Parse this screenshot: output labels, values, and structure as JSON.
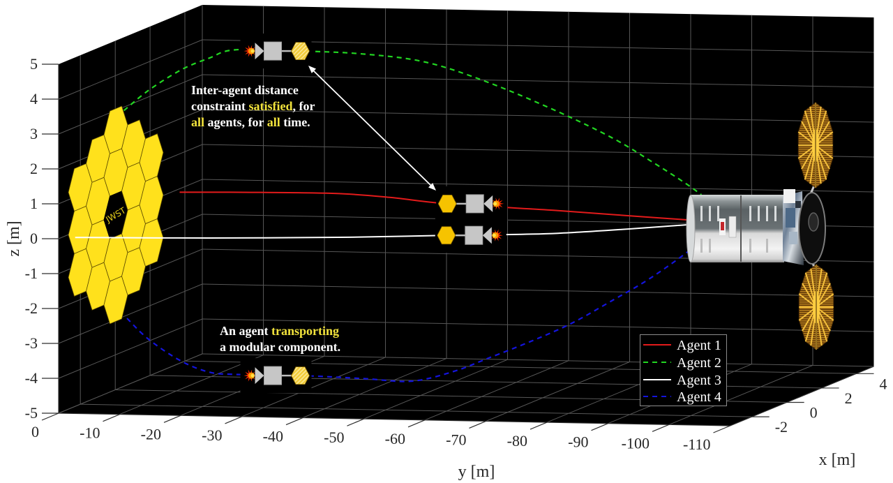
{
  "annotations": {
    "highlight_color": "#f2e33c",
    "distance_constraint": {
      "line1": "Inter-agent distance",
      "line2": {
        "pre": "constraint ",
        "highlight": "satisfied",
        "post": ", for"
      },
      "line3": {
        "highlight_1": "all",
        "mid": " agents, for ",
        "highlight_2": "all",
        "post": " time."
      }
    },
    "transport": {
      "line1": {
        "pre": "An agent ",
        "highlight": "transporting"
      },
      "line2": "a modular component."
    }
  },
  "objects": {
    "jwst_label": "JWST"
  },
  "chart_data": {
    "type": "line",
    "subtype": "3d-trajectories",
    "title": "",
    "xlabel": "x [m]",
    "ylabel": "y [m]",
    "zlabel": "z [m]",
    "xlim": [
      -3.25,
      5
    ],
    "ylim": [
      -110,
      0
    ],
    "zlim": [
      -5,
      5
    ],
    "xticks": [
      -2,
      0,
      2,
      4
    ],
    "yticks": [
      0,
      -10,
      -20,
      -30,
      -40,
      -50,
      -60,
      -70,
      -80,
      -90,
      -100,
      -110
    ],
    "zticks": [
      5,
      4,
      3,
      2,
      1,
      0,
      -1,
      -2,
      -3,
      -4,
      -5
    ],
    "grid": true,
    "background": "#000000",
    "legend": {
      "position": "southeast-inside"
    },
    "series": [
      {
        "name": "Agent 1",
        "color": "#e31b1b",
        "line_style": "solid",
        "points_xyz": [
          [
            3.7,
            0,
            -0.1
          ],
          [
            3.4,
            -12.6,
            0.0
          ],
          [
            3.0,
            -27.4,
            0.1
          ],
          [
            2.6,
            -37.7,
            0.1
          ],
          [
            2.0,
            -48.7,
            0.08
          ],
          [
            1.5,
            -68.3,
            0.05
          ],
          [
            1.0,
            -81.1,
            0.05
          ],
          [
            0.5,
            -92.3,
            0.07
          ]
        ]
      },
      {
        "name": "Agent 2",
        "color": "#22d622",
        "line_style": "dashed",
        "points_xyz": [
          [
            0.5,
            0,
            2.9
          ],
          [
            0.5,
            -4.1,
            3.5
          ],
          [
            0.5,
            -9.4,
            4.1
          ],
          [
            0.5,
            -14.0,
            4.45
          ],
          [
            0.5,
            -18.2,
            4.7
          ],
          [
            0.5,
            -28.9,
            4.7
          ],
          [
            0.5,
            -39.1,
            4.65
          ],
          [
            0.5,
            -49.4,
            4.45
          ],
          [
            0.5,
            -59.7,
            3.9
          ],
          [
            0.5,
            -71.1,
            3.1
          ],
          [
            0.5,
            -80.3,
            2.35
          ],
          [
            0.5,
            -87.1,
            1.65
          ],
          [
            0.5,
            -91.7,
            1.15
          ],
          [
            0.5,
            -94.6,
            0.8
          ]
        ]
      },
      {
        "name": "Agent 3",
        "color": "#ffffff",
        "line_style": "solid",
        "points_xyz": [
          [
            -2.3,
            0,
            -0.16
          ],
          [
            -1.9,
            -20.8,
            -0.19
          ],
          [
            -1.4,
            -42.3,
            -0.2
          ],
          [
            -1.0,
            -57.1,
            -0.18
          ],
          [
            -0.4,
            -73.7,
            -0.19
          ],
          [
            0.3,
            -92.8,
            -0.03
          ]
        ]
      },
      {
        "name": "Agent 4",
        "color": "#1414dc",
        "line_style": "dashed",
        "points_xyz": [
          [
            0.5,
            -0.5,
            -3.05
          ],
          [
            0.5,
            -4.1,
            -3.65
          ],
          [
            0.5,
            -9.4,
            -4.25
          ],
          [
            0.5,
            -14.0,
            -4.55
          ],
          [
            0.5,
            -18.2,
            -4.6
          ],
          [
            0.5,
            -28.9,
            -4.6
          ],
          [
            0.5,
            -39.1,
            -4.65
          ],
          [
            0.5,
            -47.1,
            -4.7
          ],
          [
            0.5,
            -54.0,
            -4.4
          ],
          [
            0.5,
            -59.7,
            -4.0
          ],
          [
            0.5,
            -66.6,
            -3.5
          ],
          [
            0.5,
            -73.4,
            -2.95
          ],
          [
            0.5,
            -80.3,
            -2.25
          ],
          [
            0.5,
            -86.0,
            -1.65
          ],
          [
            0.5,
            -92.3,
            -0.85
          ],
          [
            0.5,
            -94.0,
            -0.5
          ]
        ]
      }
    ],
    "agent_snapshots": [
      {
        "agent": "Agent 2",
        "position_xyz": [
          0.5,
          -28.9,
          4.7
        ],
        "facing": "right",
        "component_style": "hatched"
      },
      {
        "agent": "Agent 1",
        "position_xyz": [
          2.0,
          -48.7,
          0.08
        ],
        "facing": "left",
        "component_style": "solid"
      },
      {
        "agent": "Agent 3",
        "position_xyz": [
          -1.0,
          -57.1,
          -0.18
        ],
        "facing": "left",
        "component_style": "solid"
      },
      {
        "agent": "Agent 4",
        "position_xyz": [
          0.5,
          -28.9,
          -4.6
        ],
        "facing": "right",
        "component_style": "hatched"
      }
    ],
    "component_colors": {
      "solid": "#f6c300",
      "hatched": "#f3d142"
    }
  }
}
